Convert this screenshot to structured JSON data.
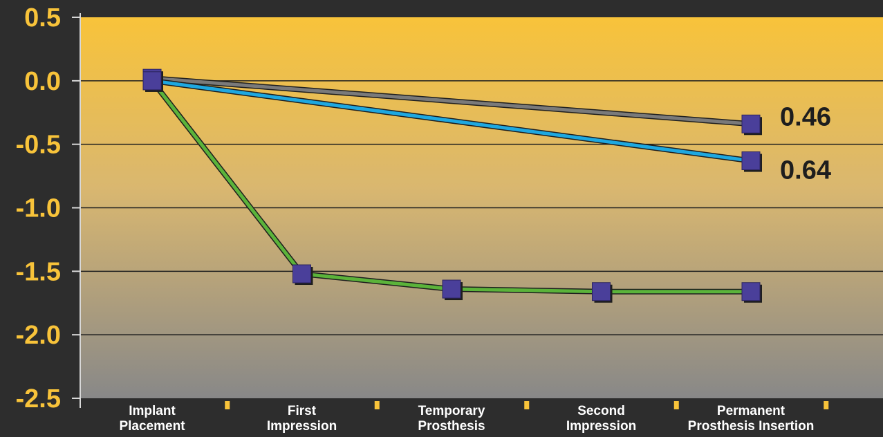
{
  "chart_data": {
    "type": "line",
    "categories": [
      [
        "Implant",
        "Placement"
      ],
      [
        "First",
        "Impression"
      ],
      [
        "Temporary",
        "Prosthesis"
      ],
      [
        "Second",
        "Impression"
      ],
      [
        "Permanent",
        "Prosthesis Insertion"
      ]
    ],
    "ylim": [
      -2.5,
      0.5
    ],
    "yticks": [
      0.5,
      0.0,
      -0.5,
      -1.0,
      -1.5,
      -2.0,
      -2.5
    ],
    "ytick_labels": [
      "0.5",
      "0.0",
      "-0.5",
      "-1.0",
      "-1.5",
      "-2.0",
      "-2.5"
    ],
    "grid": true,
    "series": [
      {
        "color": "#7a7a7a",
        "points": [
          [
            0,
            0.02
          ],
          [
            4,
            -0.34
          ]
        ]
      },
      {
        "color": "#1ea8e0",
        "points": [
          [
            0,
            0.0
          ],
          [
            4,
            -0.63
          ]
        ]
      },
      {
        "color": "#5bb33a",
        "points": [
          [
            0,
            0.0
          ],
          [
            1,
            -1.52
          ],
          [
            2,
            -1.64
          ],
          [
            3,
            -1.66
          ],
          [
            4,
            -1.66
          ]
        ]
      }
    ],
    "data_labels": [
      {
        "text": "0.46",
        "category": 4,
        "y": -0.28
      },
      {
        "text": "0.64",
        "category": 4,
        "y": -0.7
      }
    ],
    "marker_color": "#4a3f9a",
    "background_top": "#f8c33a",
    "background_bottom": "#888888"
  }
}
